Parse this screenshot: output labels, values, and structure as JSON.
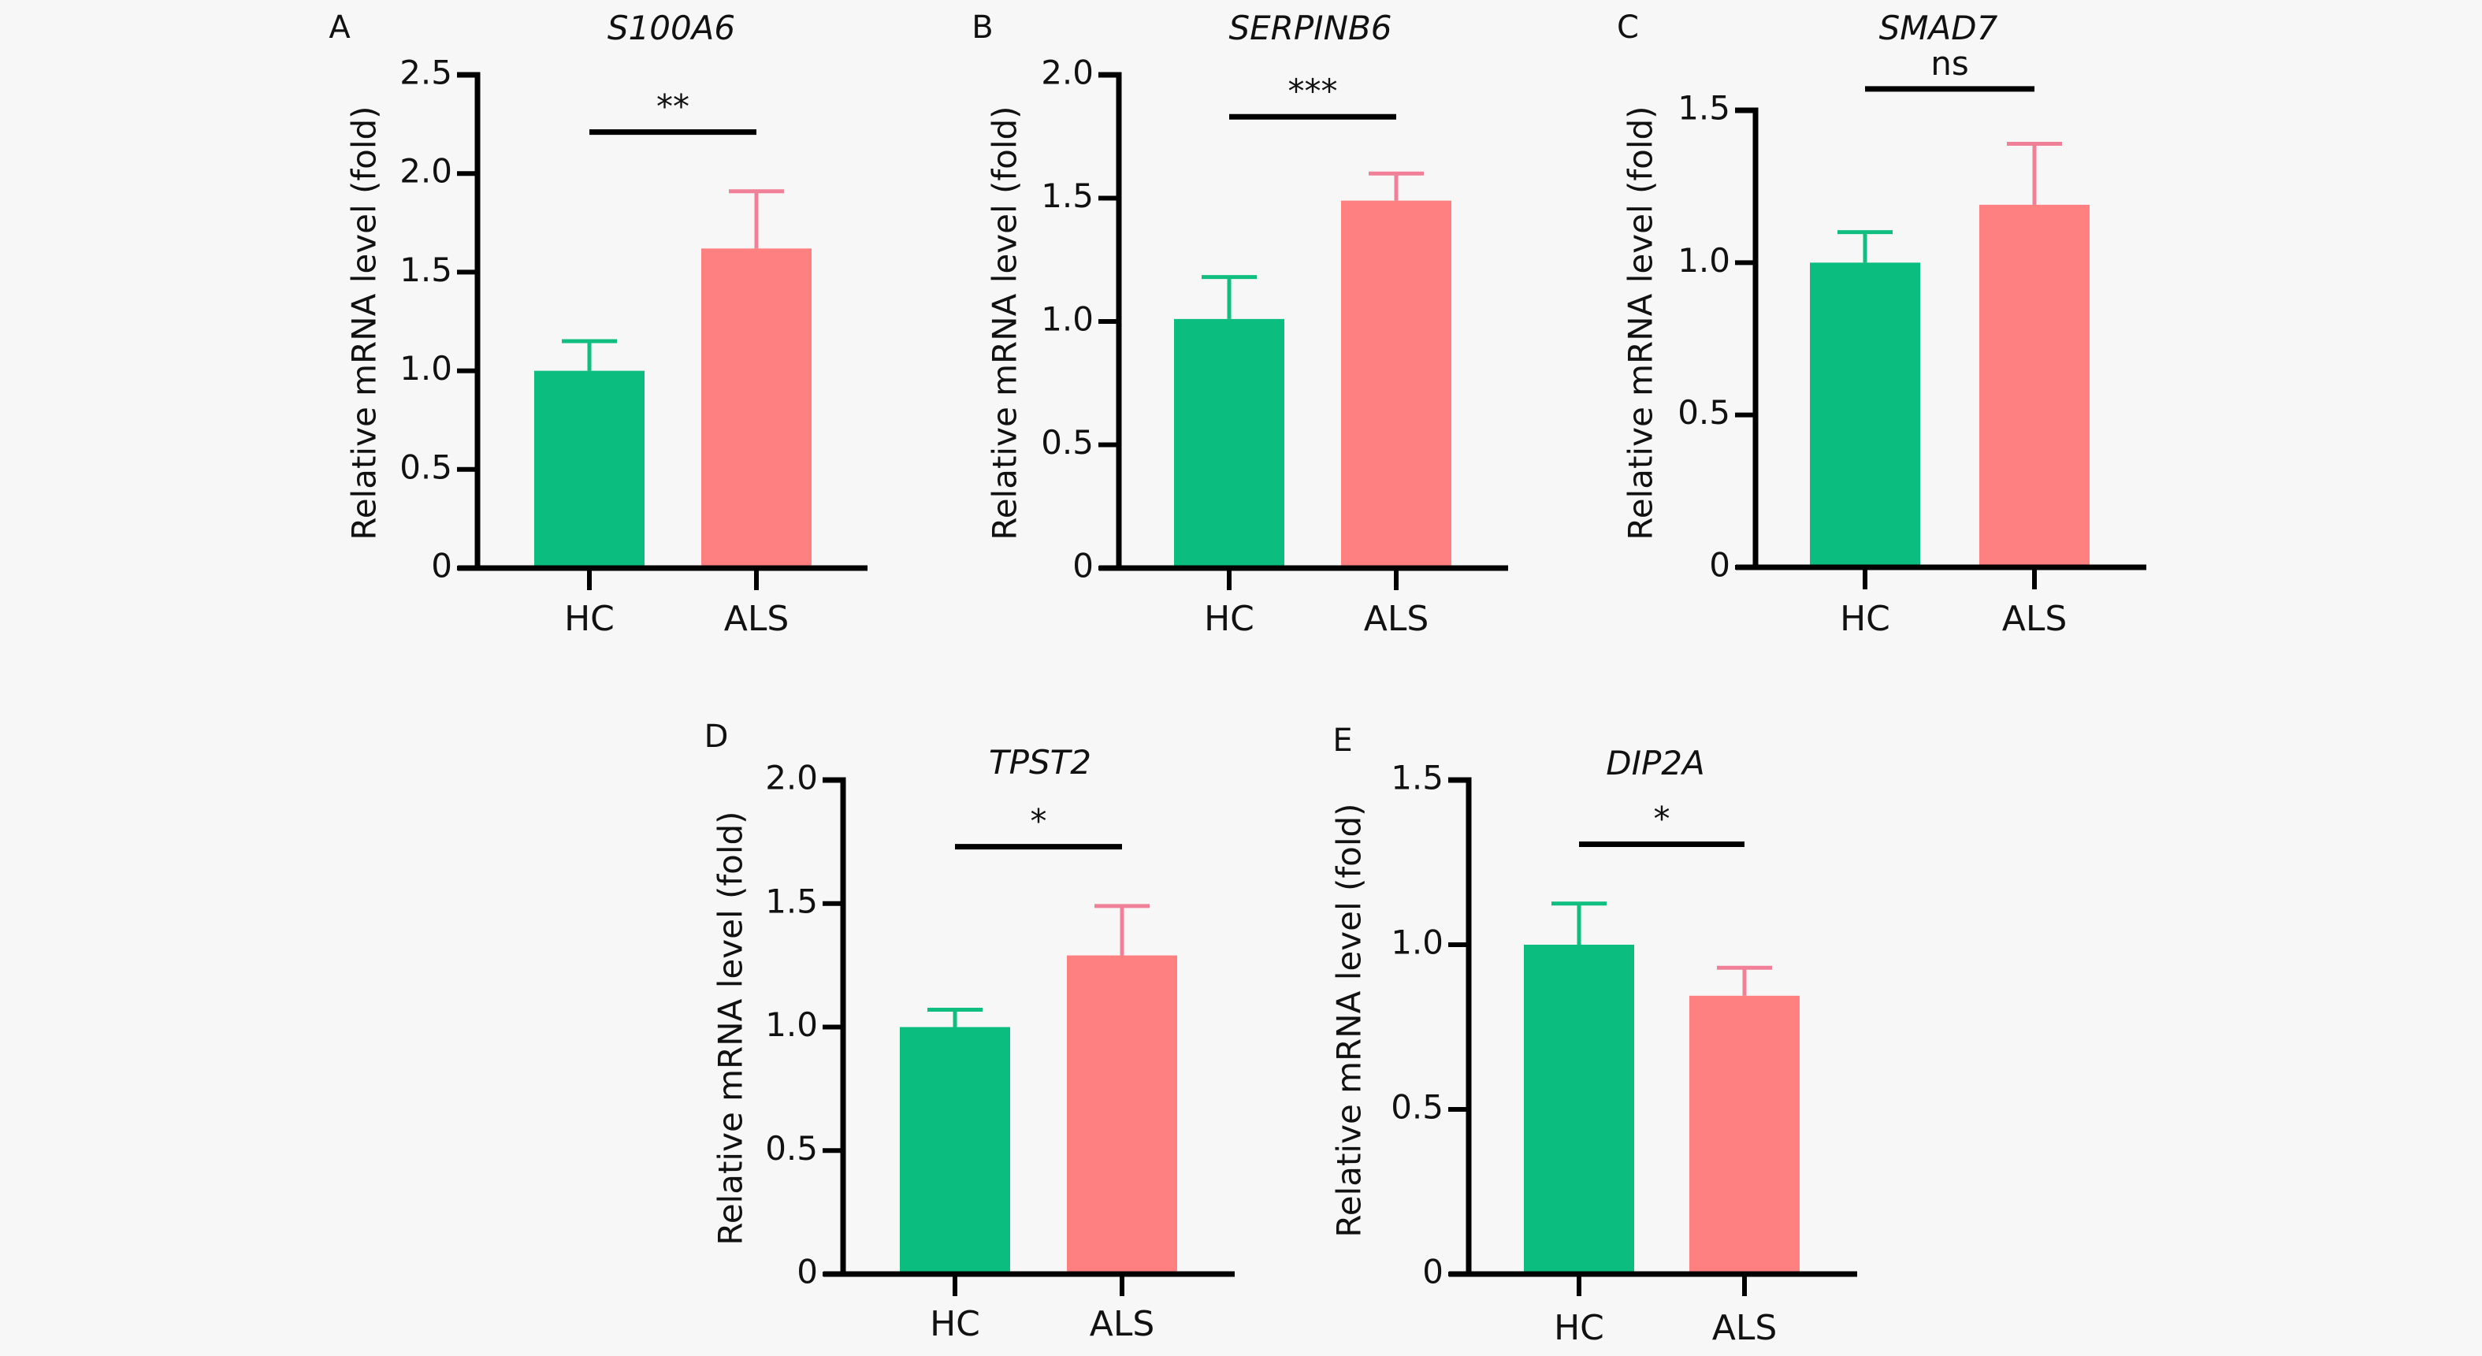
{
  "figure": {
    "background": "#f7f7f7",
    "colors": {
      "HC": "#0bbd7e",
      "ALS": "#ff8080",
      "HC_error": "#10bf80",
      "ALS_error": "#ef8097",
      "axis": "#000000"
    }
  },
  "chart_data": [
    {
      "panel": "A",
      "type": "bar",
      "title": "S100A6",
      "xlabel": "",
      "ylabel": "Relative mRNA level (fold)",
      "categories": [
        "HC",
        "ALS"
      ],
      "values": [
        1.0,
        1.62
      ],
      "error": [
        0.15,
        0.29
      ],
      "ylim": [
        0,
        2.5
      ],
      "yticks": [
        0,
        0.5,
        1.0,
        1.5,
        2.0,
        2.5
      ],
      "ytick_labels": [
        "0",
        "0.5",
        "1.0",
        "1.5",
        "2.0",
        "2.5"
      ],
      "significance": {
        "label": "**",
        "y": 2.21
      },
      "grid": false,
      "legend": "none"
    },
    {
      "panel": "B",
      "type": "bar",
      "title": "SERPINB6",
      "xlabel": "",
      "ylabel": "Relative mRNA level (fold)",
      "categories": [
        "HC",
        "ALS"
      ],
      "values": [
        1.01,
        1.49
      ],
      "error": [
        0.17,
        0.11
      ],
      "ylim": [
        0,
        2.0
      ],
      "yticks": [
        0,
        0.5,
        1.0,
        1.5,
        2.0
      ],
      "ytick_labels": [
        "0",
        "0.5",
        "1.0",
        "1.5",
        "2.0"
      ],
      "significance": {
        "label": "***",
        "y": 1.83
      },
      "grid": false,
      "legend": "none"
    },
    {
      "panel": "C",
      "type": "bar",
      "title": "SMAD7",
      "xlabel": "",
      "ylabel": "Relative mRNA level (fold)",
      "categories": [
        "HC",
        "ALS"
      ],
      "values": [
        1.0,
        1.19
      ],
      "error": [
        0.1,
        0.2
      ],
      "ylim": [
        0,
        1.5
      ],
      "yticks": [
        0,
        0.5,
        1.0,
        1.5
      ],
      "ytick_labels": [
        "0",
        "0.5",
        "1.0",
        "1.5"
      ],
      "significance": {
        "label": "ns",
        "y": 1.57
      },
      "grid": false,
      "legend": "none"
    },
    {
      "panel": "D",
      "type": "bar",
      "title": "TPST2",
      "xlabel": "",
      "ylabel": "Relative mRNA level (fold)",
      "categories": [
        "HC",
        "ALS"
      ],
      "values": [
        1.0,
        1.29
      ],
      "error": [
        0.07,
        0.2
      ],
      "ylim": [
        0,
        2.0
      ],
      "yticks": [
        0,
        0.5,
        1.0,
        1.5,
        2.0
      ],
      "ytick_labels": [
        "0",
        "0.5",
        "1.0",
        "1.5",
        "2.0"
      ],
      "significance": {
        "label": "*",
        "y": 1.73
      },
      "grid": false,
      "legend": "none"
    },
    {
      "panel": "E",
      "type": "bar",
      "title": "DIP2A",
      "xlabel": "",
      "ylabel": "Relative mRNA level (fold)",
      "categories": [
        "HC",
        "ALS"
      ],
      "values": [
        1.0,
        0.845
      ],
      "error": [
        0.125,
        0.085
      ],
      "ylim": [
        0,
        1.5
      ],
      "yticks": [
        0,
        0.5,
        1.0,
        1.5
      ],
      "ytick_labels": [
        "0",
        "0.5",
        "1.0",
        "1.5"
      ],
      "significance": {
        "label": "*",
        "y": 1.305
      },
      "grid": false,
      "legend": "none"
    }
  ]
}
